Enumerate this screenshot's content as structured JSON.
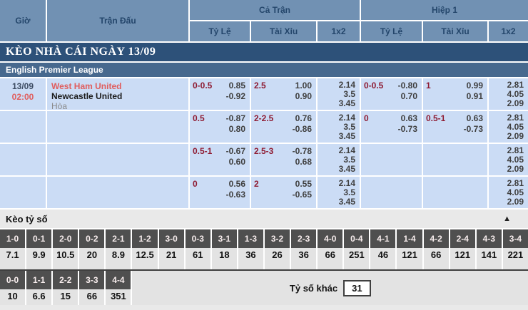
{
  "header": {
    "gio": "Giờ",
    "tran_dau": "Trận Đấu",
    "groups": [
      {
        "label": "Cả Trận",
        "cols": [
          "Tỷ Lệ",
          "Tài Xỉu",
          "1x2"
        ]
      },
      {
        "label": "Hiệp 1",
        "cols": [
          "Tỷ Lệ",
          "Tài Xỉu",
          "1x2"
        ]
      }
    ]
  },
  "banner": {
    "title": "KÈO NHÀ CÁI NGÀY 13/09"
  },
  "league": {
    "name": "English Premier League"
  },
  "match": {
    "date": "13/09",
    "time": "02:00",
    "home": "West Ham United",
    "away": "Newcastle United",
    "draw_label": "Hòa"
  },
  "odds_rows": [
    {
      "ft_hdp": {
        "line": "0-0.5",
        "odds": [
          "0.85",
          "-0.92"
        ]
      },
      "ft_ou": {
        "line": "2.5",
        "odds": [
          "1.00",
          "0.90"
        ]
      },
      "ft_1x2": [
        "2.14",
        "3.5",
        "3.45"
      ],
      "h1_hdp": {
        "line": "0-0.5",
        "odds": [
          "-0.80",
          "0.70"
        ]
      },
      "h1_ou": {
        "line": "1",
        "odds": [
          "0.99",
          "0.91"
        ]
      },
      "h1_1x2": [
        "2.81",
        "4.05",
        "2.09"
      ]
    },
    {
      "ft_hdp": {
        "line": "0.5",
        "odds": [
          "-0.87",
          "0.80"
        ]
      },
      "ft_ou": {
        "line": "2-2.5",
        "odds": [
          "0.76",
          "-0.86"
        ]
      },
      "ft_1x2": [
        "2.14",
        "3.5",
        "3.45"
      ],
      "h1_hdp": {
        "line": "0",
        "odds": [
          "0.63",
          "-0.73"
        ]
      },
      "h1_ou": {
        "line": "0.5-1",
        "odds": [
          "0.63",
          "-0.73"
        ]
      },
      "h1_1x2": [
        "2.81",
        "4.05",
        "2.09"
      ]
    },
    {
      "ft_hdp": {
        "line": "0.5-1",
        "odds": [
          "-0.67",
          "0.60"
        ]
      },
      "ft_ou": {
        "line": "2.5-3",
        "odds": [
          "-0.78",
          "0.68"
        ]
      },
      "ft_1x2": [
        "2.14",
        "3.5",
        "3.45"
      ],
      "h1_hdp": {
        "line": "",
        "odds": []
      },
      "h1_ou": {
        "line": "",
        "odds": []
      },
      "h1_1x2": [
        "2.81",
        "4.05",
        "2.09"
      ]
    },
    {
      "ft_hdp": {
        "line": "0",
        "odds": [
          "0.56",
          "-0.63"
        ]
      },
      "ft_ou": {
        "line": "2",
        "odds": [
          "0.55",
          "-0.65"
        ]
      },
      "ft_1x2": [
        "2.14",
        "3.5",
        "3.45"
      ],
      "h1_hdp": {
        "line": "",
        "odds": []
      },
      "h1_ou": {
        "line": "",
        "odds": []
      },
      "h1_1x2": [
        "2.81",
        "4.05",
        "2.09"
      ]
    }
  ],
  "score_section": {
    "title": "Kèo tỷ số",
    "collapse_icon": "▲",
    "row1": [
      {
        "score": "1-0",
        "odds": "7.1"
      },
      {
        "score": "0-1",
        "odds": "9.9"
      },
      {
        "score": "2-0",
        "odds": "10.5"
      },
      {
        "score": "0-2",
        "odds": "20"
      },
      {
        "score": "2-1",
        "odds": "8.9"
      },
      {
        "score": "1-2",
        "odds": "12.5"
      },
      {
        "score": "3-0",
        "odds": "21"
      },
      {
        "score": "0-3",
        "odds": "61"
      },
      {
        "score": "3-1",
        "odds": "18"
      },
      {
        "score": "1-3",
        "odds": "36"
      },
      {
        "score": "3-2",
        "odds": "26"
      },
      {
        "score": "2-3",
        "odds": "36"
      },
      {
        "score": "4-0",
        "odds": "66"
      },
      {
        "score": "0-4",
        "odds": "251"
      },
      {
        "score": "4-1",
        "odds": "46"
      },
      {
        "score": "1-4",
        "odds": "121"
      },
      {
        "score": "4-2",
        "odds": "66"
      },
      {
        "score": "2-4",
        "odds": "121"
      },
      {
        "score": "4-3",
        "odds": "141"
      },
      {
        "score": "3-4",
        "odds": "221"
      }
    ],
    "row2": [
      {
        "score": "0-0",
        "odds": "10"
      },
      {
        "score": "1-1",
        "odds": "6.6"
      },
      {
        "score": "2-2",
        "odds": "15"
      },
      {
        "score": "3-3",
        "odds": "66"
      },
      {
        "score": "4-4",
        "odds": "351"
      }
    ],
    "other_label": "Tỷ số khác",
    "other_value": "31"
  },
  "colors": {
    "header_bg": "#7191b3",
    "header_text": "#24466b",
    "banner_bg": "#2d5179",
    "league_bg": "#47698e",
    "row_bg": "#cbdcf5",
    "handicap_line": "#8e1b32",
    "odds_text": "#3f3f3f",
    "accent_red": "#e05d5d",
    "score_header_bg": "#4f4f4f",
    "score_value_bg": "#e3e3e3",
    "section_bg": "#e9e9e9"
  }
}
